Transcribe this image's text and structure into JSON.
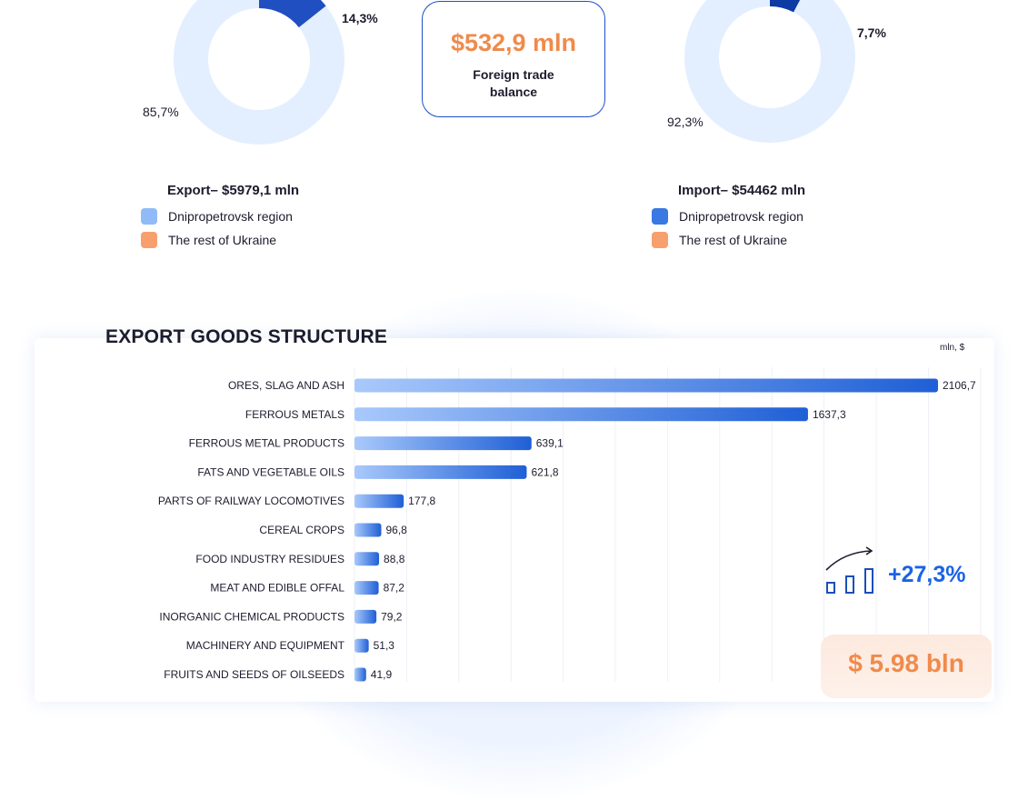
{
  "colors": {
    "export_dnipro": "#1f4fc0",
    "export_rest": "#e3efff",
    "import_dnipro": "#0e3aa3",
    "import_rest": "#e3efff",
    "legend_export_dnipro": "#90bbf7",
    "legend_import_dnipro": "#3a78e3",
    "legend_rest": "#f7a06e",
    "bar_start": "#a9c9fb",
    "bar_end": "#1f5fd6",
    "accent_orange": "#f08a4b",
    "accent_blue": "#1a63e6"
  },
  "export_donut": {
    "dnipro_label": "14,3%",
    "rest_label": "85,7%",
    "dnipro_share": 14.3,
    "rest_share": 85.7
  },
  "import_donut": {
    "dnipro_label": "7,7%",
    "rest_label": "92,3%",
    "dnipro_share": 7.7,
    "rest_share": 92.3
  },
  "balance": {
    "value": "$532,9 mln",
    "label": "Foreign trade balance"
  },
  "export_legend": {
    "title": "Export– $5979,1  mln",
    "items": [
      "Dnipropetrovsk region",
      "The rest of Ukraine"
    ]
  },
  "import_legend": {
    "title": "Import– $54462 mln",
    "items": [
      "Dnipropetrovsk region",
      "The rest of Ukraine"
    ]
  },
  "section": {
    "title": "EXPORT GOODS STRUCTURE",
    "unit": "mln, $"
  },
  "growth": {
    "icon": "growth-chart-icon",
    "value": "+27,3%"
  },
  "total": {
    "value": "$ 5.98 bln"
  },
  "chart_data": {
    "type": "bar",
    "orientation": "horizontal",
    "title": "EXPORT GOODS STRUCTURE",
    "unit": "mln, $",
    "xlim": [
      0,
      2106.7
    ],
    "grid": true,
    "categories": [
      "ORES, SLAG AND ASH",
      "FERROUS METALS",
      "FERROUS METAL PRODUCTS",
      "FATS AND VEGETABLE OILS",
      "PARTS OF RAILWAY LOCOMOTIVES",
      "CEREAL CROPS",
      "FOOD INDUSTRY RESIDUES",
      "MEAT AND EDIBLE OFFAL",
      "INORGANIC CHEMICAL PRODUCTS",
      "MACHINERY AND EQUIPMENT",
      "FRUITS AND SEEDS OF OILSEEDS"
    ],
    "values": [
      2106.7,
      1637.3,
      639.1,
      621.8,
      177.8,
      96.8,
      88.8,
      87.2,
      79.2,
      51.3,
      41.9
    ],
    "value_labels": [
      "2106,7",
      "1637,3",
      "639,1",
      "621,8",
      "177,8",
      "96,8",
      "88,8",
      "87,2",
      "79,2",
      "51,3",
      "41,9"
    ]
  }
}
